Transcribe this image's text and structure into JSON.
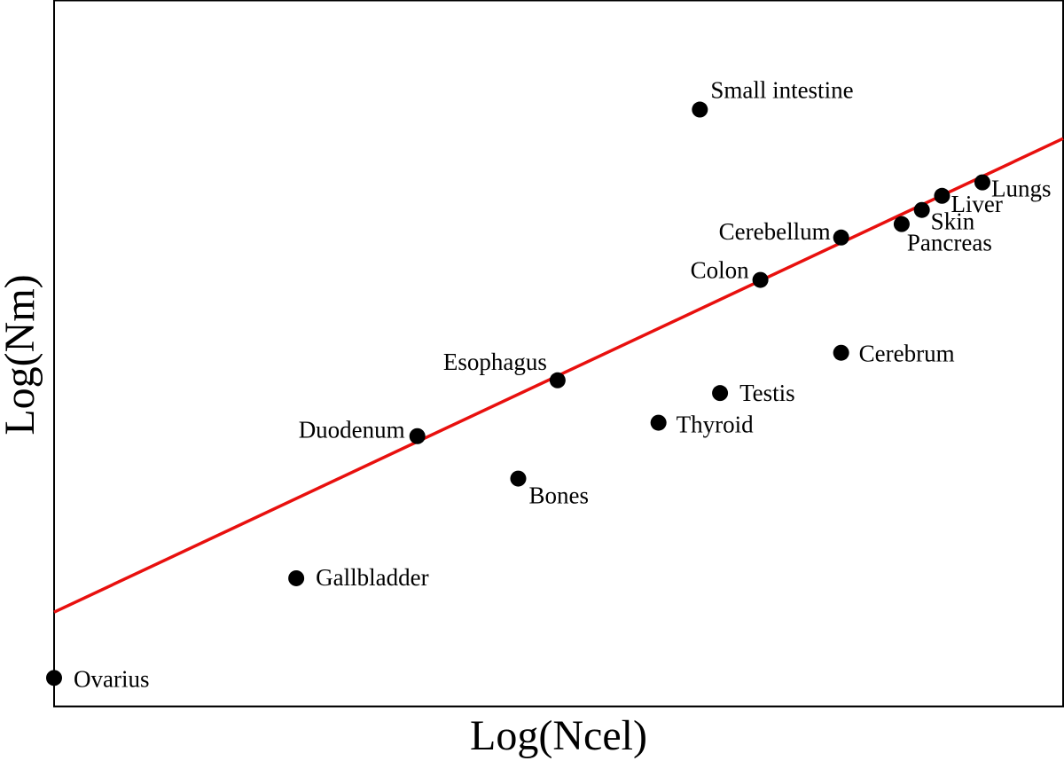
{
  "chart_data": {
    "type": "scatter",
    "title": "",
    "xlabel": "Log(Ncel)",
    "ylabel": "Log(Nm)",
    "xlim": [
      0,
      1
    ],
    "ylim": [
      0,
      1
    ],
    "grid": false,
    "ticks": false,
    "colors": {
      "points": "#000000",
      "fit_line": "#e8100e",
      "frame": "#000000"
    },
    "points": [
      {
        "label": "Ovarius",
        "x": 0.0,
        "y": 0.041
      },
      {
        "label": "Gallbladder",
        "x": 0.24,
        "y": 0.182
      },
      {
        "label": "Duodenum",
        "x": 0.36,
        "y": 0.383
      },
      {
        "label": "Bones",
        "x": 0.46,
        "y": 0.323
      },
      {
        "label": "Esophagus",
        "x": 0.499,
        "y": 0.462
      },
      {
        "label": "Thyroid",
        "x": 0.599,
        "y": 0.402
      },
      {
        "label": "Testis",
        "x": 0.66,
        "y": 0.444
      },
      {
        "label": "Small intestine",
        "x": 0.64,
        "y": 0.845
      },
      {
        "label": "Colon",
        "x": 0.7,
        "y": 0.604
      },
      {
        "label": "Cerebrum",
        "x": 0.78,
        "y": 0.501
      },
      {
        "label": "Cerebellum",
        "x": 0.78,
        "y": 0.664
      },
      {
        "label": "Pancreas",
        "x": 0.84,
        "y": 0.683
      },
      {
        "label": "Skin",
        "x": 0.86,
        "y": 0.703
      },
      {
        "label": "Liver",
        "x": 0.88,
        "y": 0.723
      },
      {
        "label": "Lungs",
        "x": 0.92,
        "y": 0.742
      }
    ],
    "fit_line": {
      "x": [
        0,
        1
      ],
      "y": [
        0.134,
        0.804
      ]
    }
  }
}
